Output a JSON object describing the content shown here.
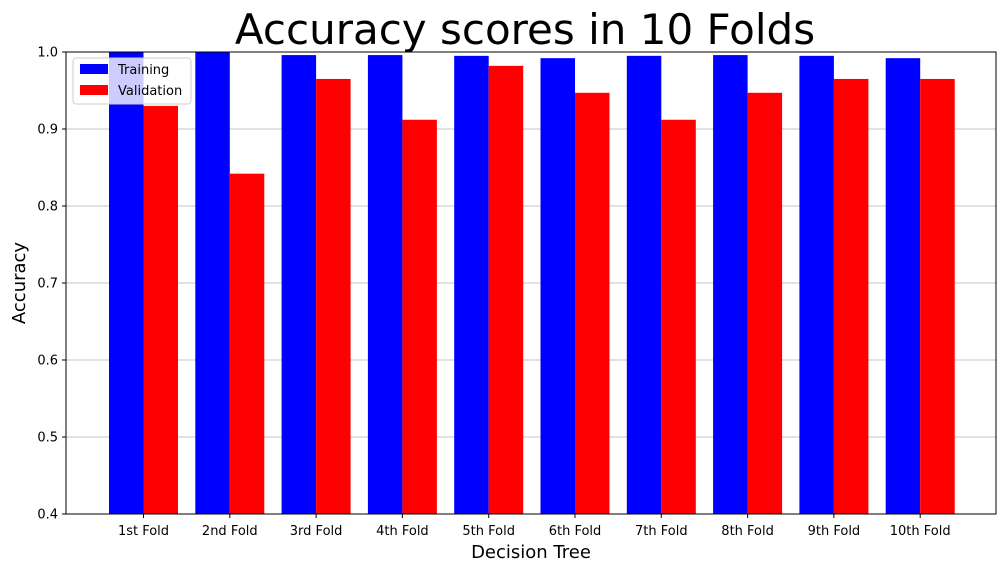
{
  "chart_data": {
    "type": "bar",
    "title": "Accuracy scores in 10 Folds",
    "xlabel": "Decision Tree",
    "ylabel": "Accuracy",
    "ylim": [
      0.4,
      1.0
    ],
    "yticks": [
      "0.4",
      "0.5",
      "0.6",
      "0.7",
      "0.8",
      "0.9",
      "1.0"
    ],
    "grid": "horizontal",
    "legend_position": "top-left",
    "categories": [
      "1st Fold",
      "2nd Fold",
      "3rd Fold",
      "4th Fold",
      "5th Fold",
      "6th Fold",
      "7th Fold",
      "8th Fold",
      "9th Fold",
      "10th Fold"
    ],
    "series": [
      {
        "name": "Training",
        "color": "#0000ff",
        "values": [
          1.0,
          1.0,
          0.996,
          0.996,
          0.995,
          0.992,
          0.995,
          0.996,
          0.995,
          0.992
        ]
      },
      {
        "name": "Validation",
        "color": "#ff0000",
        "values": [
          0.93,
          0.842,
          0.965,
          0.912,
          0.982,
          0.947,
          0.912,
          0.947,
          0.965,
          0.965
        ]
      }
    ]
  }
}
